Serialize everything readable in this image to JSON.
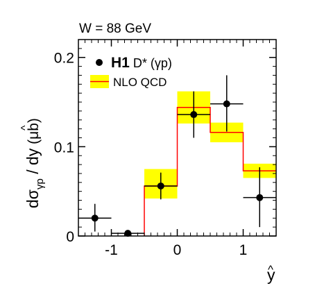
{
  "chart_data": {
    "type": "line",
    "annotation": "W = 88 GeV",
    "ylabel": {
      "prefix": "dσ",
      "sub": "γp",
      "mid": " / d",
      "var": "y",
      "hat": "^",
      "units": "  (μb)"
    },
    "xlabel": {
      "var": "y",
      "hat": "^"
    },
    "xlim": [
      -1.5,
      1.5
    ],
    "ylim": [
      0,
      0.22
    ],
    "xticks": [
      {
        "value": -1,
        "label": "-1"
      },
      {
        "value": 0,
        "label": "0"
      },
      {
        "value": 1,
        "label": "1"
      }
    ],
    "yticks": [
      {
        "value": 0,
        "label": "0"
      },
      {
        "value": 0.1,
        "label": "0.1"
      },
      {
        "value": 0.2,
        "label": "0.2"
      }
    ],
    "legend": {
      "position": "top-left",
      "data_label_bold": "H1",
      "data_label_rest": " D* (γp)",
      "theory_label": "NLO QCD"
    },
    "colors": {
      "band": "#ffff00",
      "line": "#ff0000",
      "points": "#000000"
    },
    "series": [
      {
        "name": "H1 D* (γp)",
        "kind": "points",
        "points": [
          {
            "x": -1.25,
            "y": 0.02,
            "xerr": 0.25,
            "ylo": 0.005,
            "yhi": 0.036
          },
          {
            "x": -0.75,
            "y": 0.003,
            "xerr": 0.25,
            "ylo": 0.0,
            "yhi": 0.005
          },
          {
            "x": -0.25,
            "y": 0.056,
            "xerr": 0.25,
            "ylo": 0.041,
            "yhi": 0.071
          },
          {
            "x": 0.25,
            "y": 0.136,
            "xerr": 0.25,
            "ylo": 0.11,
            "yhi": 0.162
          },
          {
            "x": 0.75,
            "y": 0.148,
            "xerr": 0.25,
            "ylo": 0.117,
            "yhi": 0.18
          },
          {
            "x": 1.25,
            "y": 0.043,
            "xerr": 0.25,
            "ylo": 0.01,
            "yhi": 0.077
          }
        ]
      },
      {
        "name": "NLO QCD",
        "kind": "histogram",
        "bins": [
          {
            "lo": -0.5,
            "hi": 0.0,
            "y": 0.056,
            "band_lo": 0.042,
            "band_hi": 0.075
          },
          {
            "lo": 0.0,
            "hi": 0.5,
            "y": 0.144,
            "band_lo": 0.126,
            "band_hi": 0.162
          },
          {
            "lo": 0.5,
            "hi": 1.0,
            "y": 0.116,
            "band_lo": 0.105,
            "band_hi": 0.127
          },
          {
            "lo": 1.0,
            "hi": 1.5,
            "y": 0.073,
            "band_lo": 0.065,
            "band_hi": 0.081
          }
        ]
      }
    ]
  }
}
